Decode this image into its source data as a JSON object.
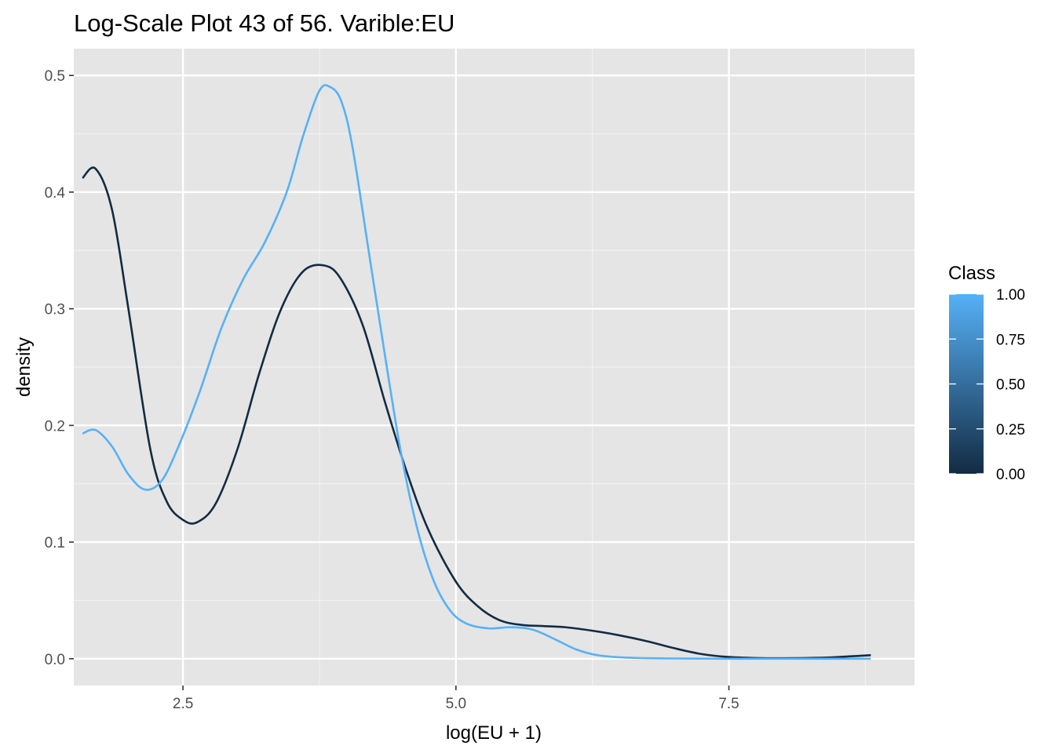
{
  "chart_data": {
    "type": "line",
    "title": "Log-Scale Plot 43 of 56. Varible:EU",
    "xlabel": "log(EU + 1)",
    "ylabel": "density",
    "xlim": [
      1.5,
      9.2
    ],
    "ylim": [
      -0.023,
      0.523
    ],
    "x_ticks": [
      2.5,
      5.0,
      7.5
    ],
    "x_tick_labels": [
      "2.5",
      "5.0",
      "7.5"
    ],
    "y_ticks": [
      0.0,
      0.1,
      0.2,
      0.3,
      0.4,
      0.5
    ],
    "y_tick_labels": [
      "0.0",
      "0.1",
      "0.2",
      "0.3",
      "0.4",
      "0.5"
    ],
    "grid": true,
    "legend": {
      "title": "Class",
      "type": "colorbar",
      "placement": "right",
      "labels": [
        "1.00",
        "0.75",
        "0.50",
        "0.25",
        "0.00"
      ],
      "values": [
        1.0,
        0.75,
        0.5,
        0.25,
        0.0
      ],
      "color_low": "#132B43",
      "color_high": "#56B1F7"
    },
    "colors": {
      "panel_background": "#e5e5e5",
      "grid": "#ffffff",
      "class_0": "#132B43",
      "class_1": "#56B1F7"
    },
    "series": [
      {
        "class_value": 0,
        "color": "#132B43",
        "points": [
          [
            1.58,
            0.412
          ],
          [
            1.7,
            0.42
          ],
          [
            1.85,
            0.385
          ],
          [
            2.0,
            0.3
          ],
          [
            2.2,
            0.18
          ],
          [
            2.35,
            0.135
          ],
          [
            2.5,
            0.119
          ],
          [
            2.63,
            0.117
          ],
          [
            2.8,
            0.133
          ],
          [
            3.0,
            0.18
          ],
          [
            3.2,
            0.245
          ],
          [
            3.4,
            0.3
          ],
          [
            3.6,
            0.332
          ],
          [
            3.8,
            0.337
          ],
          [
            3.95,
            0.325
          ],
          [
            4.15,
            0.285
          ],
          [
            4.35,
            0.22
          ],
          [
            4.55,
            0.16
          ],
          [
            4.75,
            0.11
          ],
          [
            5.0,
            0.066
          ],
          [
            5.2,
            0.045
          ],
          [
            5.4,
            0.033
          ],
          [
            5.6,
            0.029
          ],
          [
            5.8,
            0.028
          ],
          [
            6.0,
            0.027
          ],
          [
            6.25,
            0.024
          ],
          [
            6.5,
            0.02
          ],
          [
            6.75,
            0.015
          ],
          [
            7.0,
            0.009
          ],
          [
            7.25,
            0.004
          ],
          [
            7.5,
            0.0015
          ],
          [
            7.8,
            0.0005
          ],
          [
            8.1,
            0.0005
          ],
          [
            8.4,
            0.001
          ],
          [
            8.6,
            0.002
          ],
          [
            8.8,
            0.003
          ]
        ]
      },
      {
        "class_value": 1,
        "color": "#56B1F7",
        "points": [
          [
            1.58,
            0.193
          ],
          [
            1.7,
            0.196
          ],
          [
            1.85,
            0.182
          ],
          [
            2.0,
            0.158
          ],
          [
            2.15,
            0.145
          ],
          [
            2.3,
            0.152
          ],
          [
            2.45,
            0.18
          ],
          [
            2.65,
            0.228
          ],
          [
            2.85,
            0.283
          ],
          [
            3.05,
            0.325
          ],
          [
            3.25,
            0.357
          ],
          [
            3.45,
            0.4
          ],
          [
            3.6,
            0.448
          ],
          [
            3.75,
            0.487
          ],
          [
            3.85,
            0.49
          ],
          [
            3.95,
            0.478
          ],
          [
            4.05,
            0.44
          ],
          [
            4.2,
            0.35
          ],
          [
            4.35,
            0.26
          ],
          [
            4.5,
            0.175
          ],
          [
            4.65,
            0.11
          ],
          [
            4.8,
            0.066
          ],
          [
            4.95,
            0.041
          ],
          [
            5.1,
            0.03
          ],
          [
            5.3,
            0.026
          ],
          [
            5.5,
            0.027
          ],
          [
            5.7,
            0.025
          ],
          [
            5.9,
            0.017
          ],
          [
            6.1,
            0.008
          ],
          [
            6.3,
            0.003
          ],
          [
            6.6,
            0.0008
          ],
          [
            7.0,
            0.0002
          ],
          [
            7.5,
            0.0
          ],
          [
            8.0,
            0.0
          ],
          [
            8.8,
            0.0
          ]
        ]
      }
    ]
  }
}
